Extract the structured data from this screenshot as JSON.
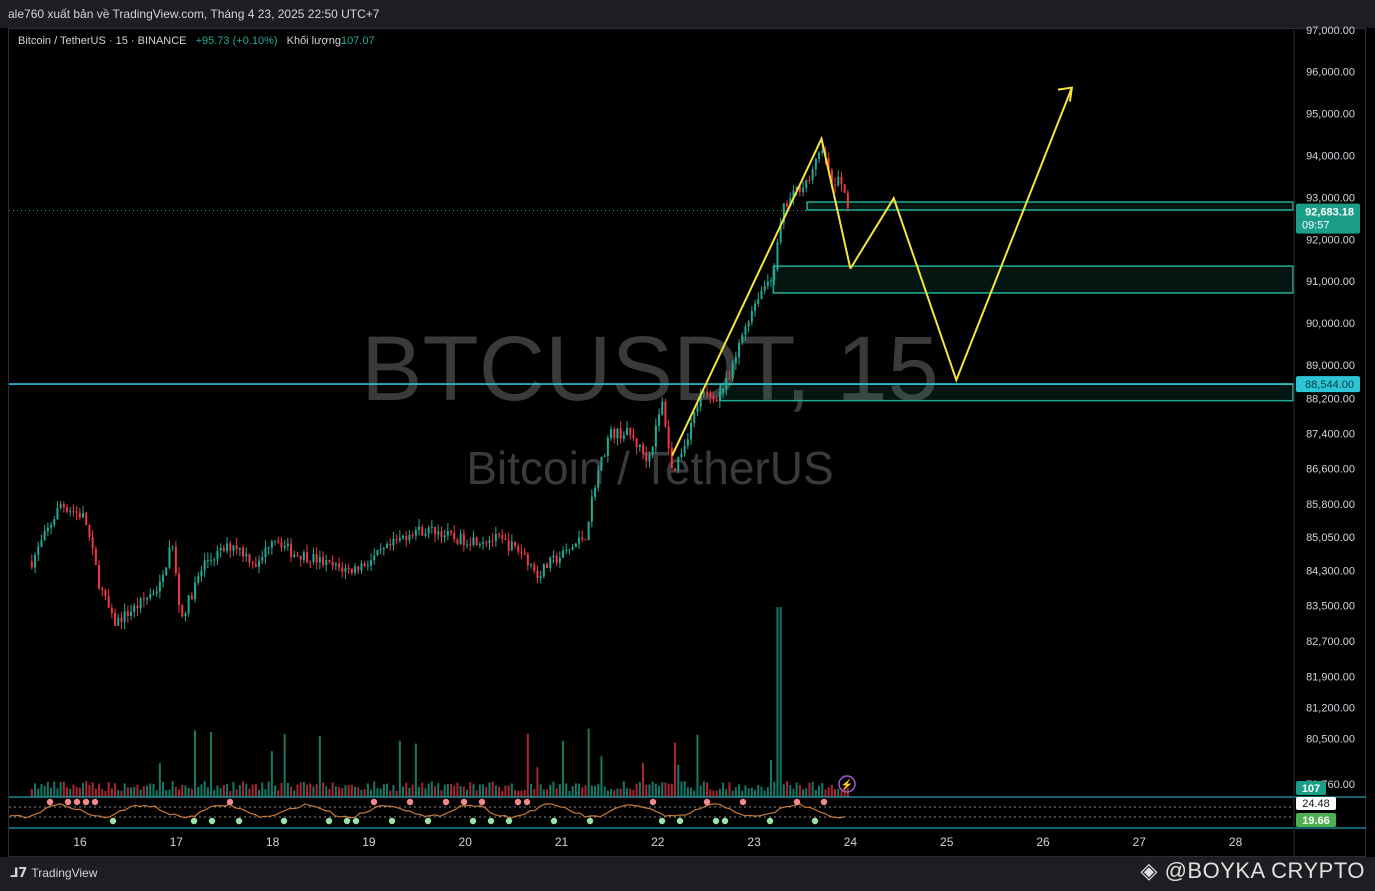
{
  "header": {
    "publisher": "ale760 xuất bản về TradingView.com, Tháng 4 23, 2025 22:50 UTC+7"
  },
  "legend": {
    "symbol": "Bitcoin / TetherUS · 15 · BINANCE",
    "change": "+95.73 (+0.10%)",
    "volume_label": "Khối lượng",
    "volume_value": "107.07"
  },
  "watermark": {
    "line1": "BTCUSDT, 15",
    "line2": "Bitcoin / TetherUS"
  },
  "footer": {
    "logo_text": "TradingView",
    "brand": "@BOYKA CRYPTO"
  },
  "colors": {
    "background": "#000000",
    "up": "#22ab94",
    "down": "#f23645",
    "projection": "#f5e53b",
    "zone": "#1fae95",
    "support_line": "#2ec6d6"
  },
  "chart_data": {
    "type": "candlestick",
    "symbol": "BTCUSDT",
    "timeframe": "15",
    "y_axis": {
      "ticks": [
        97000,
        96000,
        95000,
        94000,
        93000,
        92000,
        91000,
        90000,
        89000,
        88200,
        87400,
        86600,
        85800,
        85050,
        84300,
        83500,
        82700,
        81900,
        81200,
        80500,
        79760
      ],
      "tick_labels": [
        "97,000.00",
        "96,000.00",
        "95,000.00",
        "94,000.00",
        "93,000.00",
        "92,000.00",
        "91,000.00",
        "90,000.00",
        "89,000.00",
        "88,200.00",
        "87,400.00",
        "86,600.00",
        "85,800.00",
        "85,050.00",
        "84,300.00",
        "83,500.00",
        "82,700.00",
        "81,900.00",
        "81,200.00",
        "80,500.00",
        "79,760.00"
      ],
      "scale": "log"
    },
    "x_axis": {
      "ticks": [
        16,
        17,
        18,
        19,
        20,
        21,
        22,
        23,
        24,
        25,
        26,
        27,
        28
      ],
      "tick_labels": [
        "16",
        "17",
        "18",
        "19",
        "20",
        "21",
        "22",
        "23",
        "24",
        "25",
        "26",
        "27",
        "28"
      ]
    },
    "price_path": [
      [
        15.5,
        84500
      ],
      [
        15.8,
        85800
      ],
      [
        16.05,
        85500
      ],
      [
        16.2,
        84000
      ],
      [
        16.35,
        83100
      ],
      [
        16.6,
        83500
      ],
      [
        16.85,
        84000
      ],
      [
        16.95,
        85000
      ],
      [
        17.05,
        83200
      ],
      [
        17.3,
        84500
      ],
      [
        17.6,
        84900
      ],
      [
        17.85,
        84400
      ],
      [
        18.0,
        85100
      ],
      [
        18.2,
        84700
      ],
      [
        18.4,
        84600
      ],
      [
        18.6,
        84400
      ],
      [
        18.8,
        84300
      ],
      [
        19.0,
        84500
      ],
      [
        19.2,
        84800
      ],
      [
        19.45,
        85200
      ],
      [
        19.7,
        85200
      ],
      [
        19.9,
        85000
      ],
      [
        20.1,
        85000
      ],
      [
        20.35,
        85000
      ],
      [
        20.6,
        84700
      ],
      [
        20.75,
        84200
      ],
      [
        20.9,
        84500
      ],
      [
        21.05,
        84700
      ],
      [
        21.25,
        85100
      ],
      [
        21.35,
        86300
      ],
      [
        21.5,
        87400
      ],
      [
        21.7,
        87400
      ],
      [
        21.9,
        86800
      ],
      [
        22.05,
        88100
      ],
      [
        22.15,
        86500
      ],
      [
        22.3,
        87300
      ],
      [
        22.45,
        88300
      ],
      [
        22.6,
        88200
      ],
      [
        22.75,
        88700
      ],
      [
        22.9,
        89900
      ],
      [
        23.05,
        90700
      ],
      [
        23.2,
        91200
      ],
      [
        23.3,
        92700
      ],
      [
        23.45,
        93200
      ],
      [
        23.6,
        93500
      ],
      [
        23.7,
        94300
      ],
      [
        23.8,
        93300
      ],
      [
        23.9,
        93400
      ],
      [
        24.0,
        92683
      ]
    ],
    "last_price": 92683.18,
    "last_price_label": "92,683.18",
    "countdown": "09:57",
    "support_level": 88544,
    "support_label": "88,544.00",
    "zones": [
      {
        "from_x": 23.55,
        "top": 92890,
        "bottom": 92700
      },
      {
        "from_x": 23.2,
        "top": 91360,
        "bottom": 90720
      },
      {
        "from_x": 22.65,
        "top": 88544,
        "bottom": 88140
      }
    ],
    "projection": [
      [
        24.0,
        91300
      ],
      [
        24.45,
        92980
      ],
      [
        25.1,
        88640
      ],
      [
        26.3,
        95620
      ]
    ],
    "impulse_line": [
      [
        22.15,
        86900
      ],
      [
        23.7,
        94400
      ],
      [
        24.0,
        91300
      ]
    ],
    "volume": {
      "current": 107,
      "current_label": "107",
      "spike_day": 23.25
    },
    "oscillator": {
      "values": [
        24.48,
        19.66
      ],
      "labels": [
        "24.48",
        "19.66"
      ]
    }
  }
}
